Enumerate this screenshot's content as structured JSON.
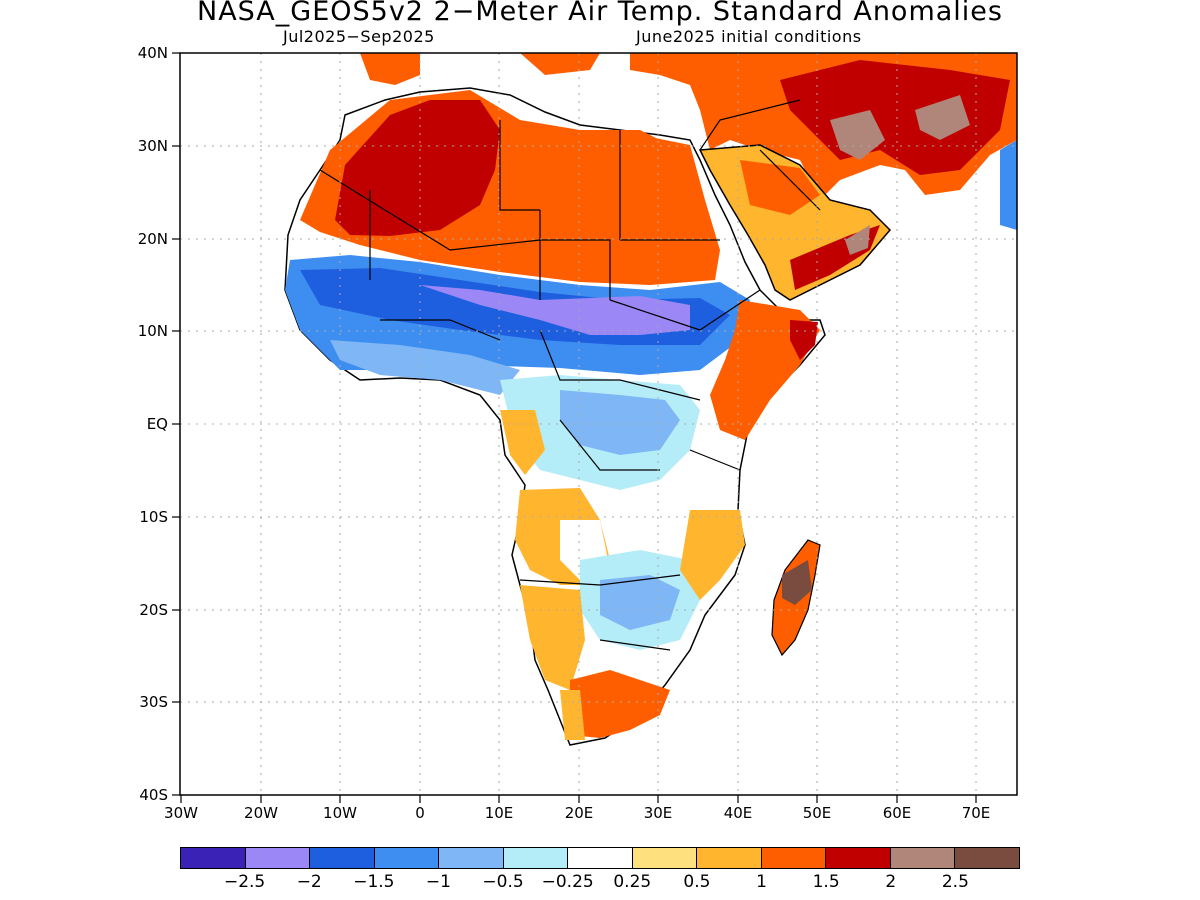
{
  "title": "NASA_GEOS5v2 2−Meter Air Temp. Standard Anomalies",
  "period": "Jul2025−Sep2025",
  "initial_conditions": "June2025 initial conditions",
  "lat_labels": [
    "40N",
    "30N",
    "20N",
    "10N",
    "EQ",
    "10S",
    "20S",
    "30S",
    "40S"
  ],
  "lon_labels": [
    "30W",
    "20W",
    "10W",
    "0",
    "10E",
    "20E",
    "30E",
    "40E",
    "50E",
    "60E",
    "70E"
  ],
  "legend": {
    "colors": [
      "#3b22b6",
      "#9b87f5",
      "#1e5fe0",
      "#3d8ef0",
      "#7fb6f5",
      "#b4ecf8",
      "#ffffff",
      "#ffe07f",
      "#ffb52e",
      "#ff5e00",
      "#c00000",
      "#b0857a",
      "#7a4c3f"
    ],
    "labels": [
      "−2.5",
      "−2",
      "−1.5",
      "−1",
      "−0.5",
      "−0.25",
      "0.25",
      "0.5",
      "1",
      "1.5",
      "2",
      "2.5"
    ]
  }
}
